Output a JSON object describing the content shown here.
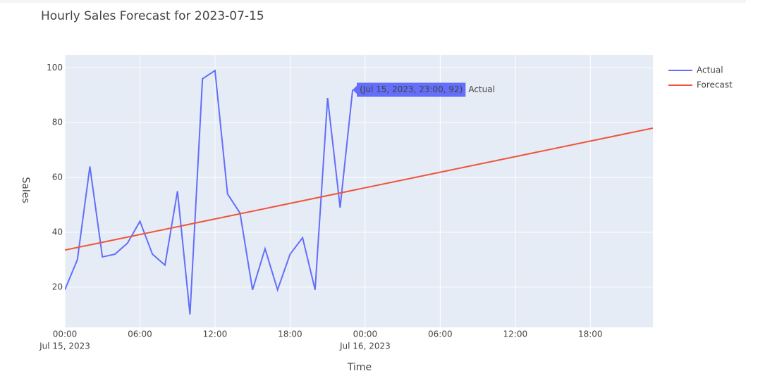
{
  "chart_data": {
    "type": "line",
    "title": "Hourly Sales Forecast for 2023-07-15",
    "x_label": "Time",
    "y_label": "Sales",
    "series": [
      {
        "name": "Actual",
        "color": "#636efa",
        "x": [
          "2023-07-15T00:00",
          "2023-07-15T01:00",
          "2023-07-15T02:00",
          "2023-07-15T03:00",
          "2023-07-15T04:00",
          "2023-07-15T05:00",
          "2023-07-15T06:00",
          "2023-07-15T07:00",
          "2023-07-15T08:00",
          "2023-07-15T09:00",
          "2023-07-15T10:00",
          "2023-07-15T11:00",
          "2023-07-15T12:00",
          "2023-07-15T13:00",
          "2023-07-15T14:00",
          "2023-07-15T15:00",
          "2023-07-15T16:00",
          "2023-07-15T17:00",
          "2023-07-15T18:00",
          "2023-07-15T19:00",
          "2023-07-15T20:00",
          "2023-07-15T21:00",
          "2023-07-15T22:00",
          "2023-07-15T23:00"
        ],
        "values": [
          19,
          30,
          64,
          31,
          32,
          36,
          44,
          32,
          28,
          55,
          10,
          96,
          99,
          54,
          47,
          19,
          34,
          19,
          32,
          38,
          19,
          89,
          49,
          92
        ]
      },
      {
        "name": "Forecast",
        "color": "#ef553b",
        "x": [
          "2023-07-15T00:00",
          "2023-07-16T23:00"
        ],
        "values": [
          33.5,
          78
        ]
      }
    ],
    "xlim": [
      "2023-07-15T00:00",
      "2023-07-16T23:00"
    ],
    "xticks": [
      {
        "value": "2023-07-15T00:00",
        "label": "00:00",
        "date_label": "Jul 15, 2023"
      },
      {
        "value": "2023-07-15T06:00",
        "label": "06:00"
      },
      {
        "value": "2023-07-15T12:00",
        "label": "12:00"
      },
      {
        "value": "2023-07-15T18:00",
        "label": "18:00"
      },
      {
        "value": "2023-07-16T00:00",
        "label": "00:00",
        "date_label": "Jul 16, 2023"
      },
      {
        "value": "2023-07-16T06:00",
        "label": "06:00"
      },
      {
        "value": "2023-07-16T12:00",
        "label": "12:00"
      },
      {
        "value": "2023-07-16T18:00",
        "label": "18:00"
      }
    ],
    "ylim": [
      5.3,
      104.7
    ],
    "yticks": [
      20,
      40,
      60,
      80,
      100
    ],
    "grid": true,
    "hover": {
      "series": 0,
      "index": 23,
      "label": "(Jul 15, 2023, 23:00, 92)",
      "name": "Actual"
    }
  }
}
